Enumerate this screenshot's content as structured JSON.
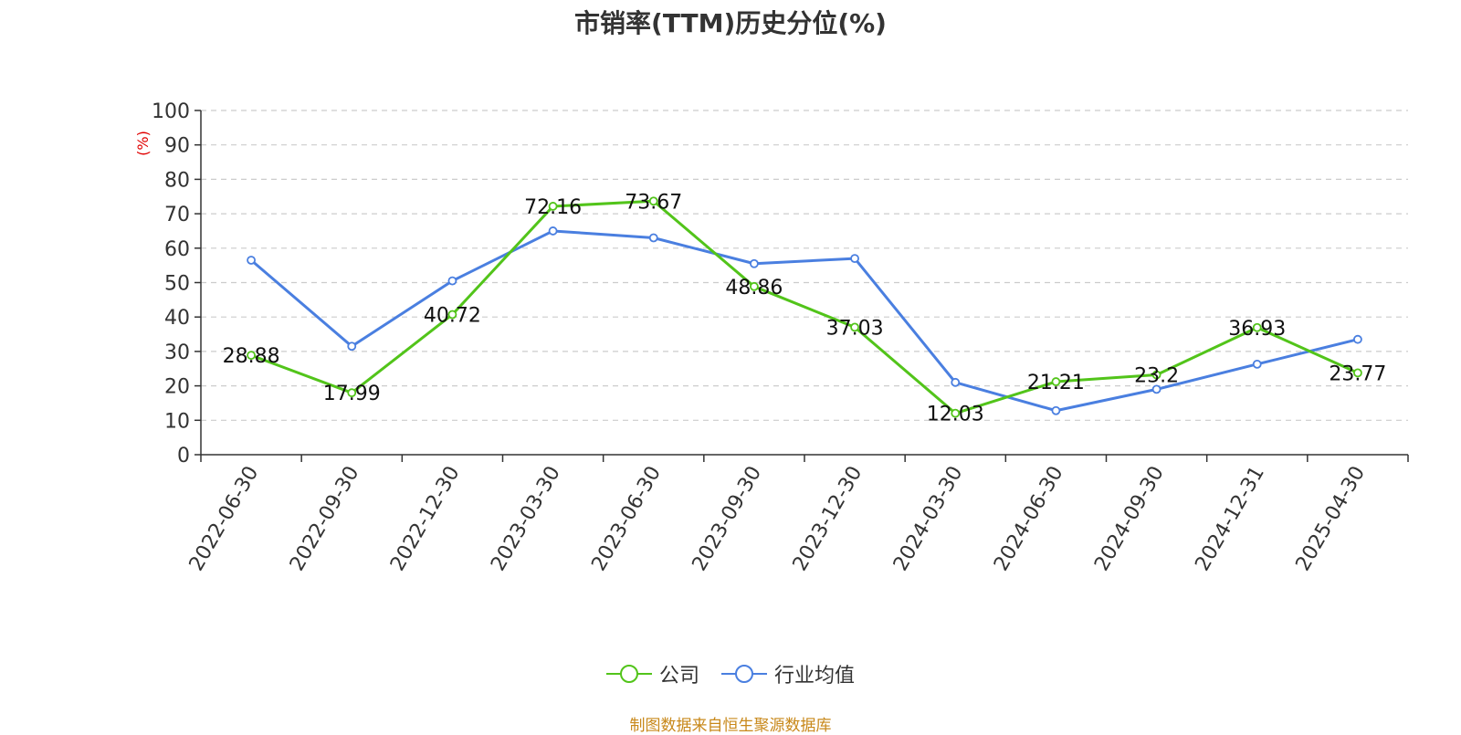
{
  "chart_data": {
    "type": "line",
    "title": "市销率(TTM)历史分位(%)",
    "ylabel": "(%)",
    "ylim": [
      0,
      100
    ],
    "yticks": [
      0,
      10,
      20,
      30,
      40,
      50,
      60,
      70,
      80,
      90,
      100
    ],
    "categories": [
      "2022-06-30",
      "2022-09-30",
      "2022-12-30",
      "2023-03-30",
      "2023-06-30",
      "2023-09-30",
      "2023-12-30",
      "2024-03-30",
      "2024-06-30",
      "2024-09-30",
      "2024-12-31",
      "2025-04-30"
    ],
    "grid": true,
    "legend_position": "bottom",
    "series": [
      {
        "name": "公司",
        "color": "#52c41a",
        "show_labels": true,
        "values": [
          28.88,
          17.99,
          40.72,
          72.16,
          73.67,
          48.86,
          37.03,
          12.03,
          21.21,
          23.2,
          36.93,
          23.77
        ]
      },
      {
        "name": "行业均值",
        "color": "#4a7fe0",
        "show_labels": false,
        "values": [
          56.5,
          31.5,
          50.5,
          65.0,
          63.0,
          55.5,
          57.0,
          21.0,
          12.8,
          19.0,
          26.3,
          33.5
        ]
      }
    ]
  },
  "footer": "制图数据来自恒生聚源数据库"
}
